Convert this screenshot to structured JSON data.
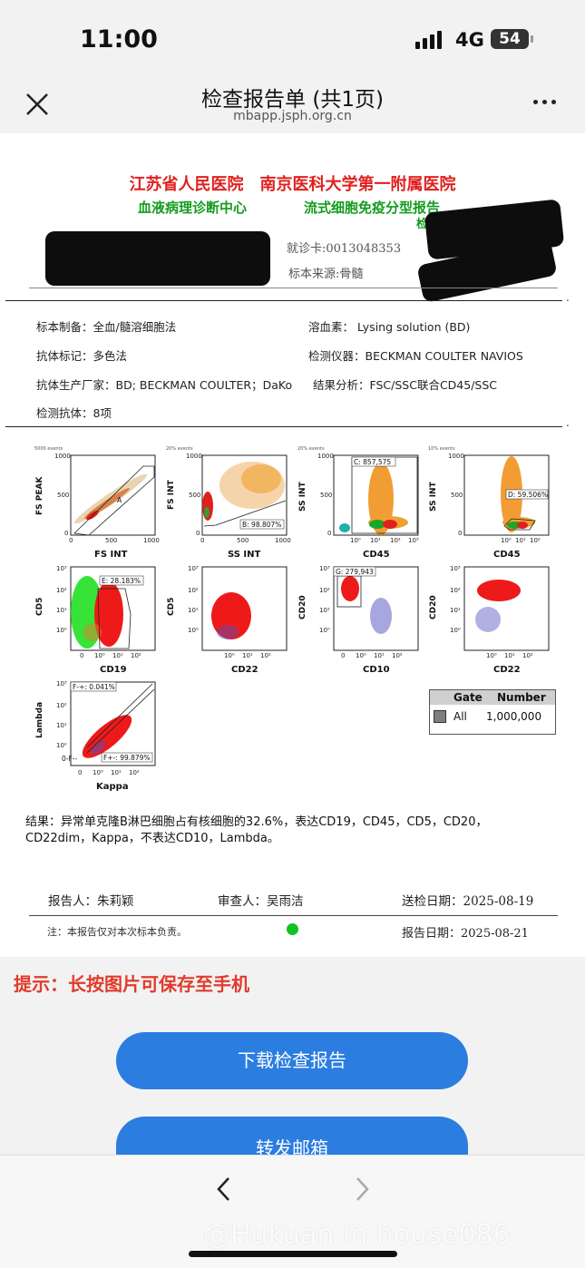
{
  "status": {
    "time": "11:00",
    "network": "4G",
    "battery": "54"
  },
  "nav": {
    "title": "检查报告单 (共1页)",
    "url": "mbapp.jsph.org.cn",
    "close_icon": "close-icon",
    "more_icon": "more-icon"
  },
  "report": {
    "hospital": "江苏省人民医院　南京医科大学第一附属医院",
    "department": "血液病理诊断中心",
    "title": "流式细胞免疫分型报告",
    "report_no_label": "检",
    "card_no": "就诊卡:0013048353",
    "specimen_source": "标本来源:骨髓",
    "specimen_prep": "标本制备：全血/髓溶细胞法",
    "lysing": "溶血素： Lysing solution (BD)",
    "antibody_label": "抗体标记：多色法",
    "instrument": "检测仪器：BECKMAN COULTER NAVIOS",
    "manufacturer": "抗体生产厂家：BD; BECKMAN COULTER；DaKo",
    "analysis": "结果分析：FSC/SSC联合CD45/SSC",
    "antibody_count": "检测抗体：8项",
    "result": "结果：异常单克隆B淋巴细胞占有核细胞的32.6%，表达CD19，CD45，CD5，CD20，CD22dim，Kappa，不表达CD10，Lambda。",
    "reporter": "报告人：朱莉颖",
    "reviewer": "审查人：吴雨洁",
    "submit_date": "送检日期：2025-08-19",
    "note": "注：本报告仅对本次标本负责。",
    "report_date": "报告日期：2025-08-21"
  },
  "legend": {
    "gate_header": "Gate",
    "number_header": "Number",
    "gate": "All",
    "number": "1,000,000"
  },
  "plots": [
    {
      "events": "5000 events",
      "x": "FS INT",
      "y": "FS PEAK",
      "xticks": [
        "0",
        "500",
        "1000"
      ],
      "yticks": [
        "0",
        "500",
        "1000"
      ],
      "gate": "A",
      "gate_value": ""
    },
    {
      "events": "20% events",
      "x": "SS INT",
      "y": "FS INT",
      "xticks": [
        "0",
        "500",
        "1000"
      ],
      "yticks": [
        "0",
        "500",
        "1000"
      ],
      "gate": "B",
      "gate_value": "98.807%"
    },
    {
      "events": "20% events",
      "x": "CD45",
      "y": "SS INT",
      "xticks": [
        "10⁰",
        "10¹",
        "10²",
        "10³"
      ],
      "yticks": [
        "0",
        "500",
        "1000"
      ],
      "gate": "C",
      "gate_value": "857,575"
    },
    {
      "events": "10% events",
      "x": "CD45",
      "y": "SS INT",
      "xticks": [
        "10⁰",
        "10¹",
        "10²"
      ],
      "yticks": [
        "0",
        "500",
        "1000"
      ],
      "gate": "D",
      "gate_value": "59.506%"
    },
    {
      "events": "",
      "x": "CD19",
      "y": "CD5",
      "xticks": [
        "0",
        "10⁰",
        "10¹",
        "10²"
      ],
      "yticks": [
        "10⁰",
        "10¹",
        "10²",
        "10³"
      ],
      "gate": "E",
      "gate_value": "28.183%"
    },
    {
      "events": "",
      "x": "CD22",
      "y": "CD5",
      "xticks": [
        "10⁰",
        "10¹",
        "10²"
      ],
      "yticks": [
        "10⁰",
        "10¹",
        "10²",
        "10³"
      ],
      "gate": "",
      "gate_value": ""
    },
    {
      "events": "",
      "x": "CD10",
      "y": "CD20",
      "xticks": [
        "0",
        "10⁰",
        "10¹",
        "10²"
      ],
      "yticks": [
        "10⁰",
        "10¹",
        "10²",
        "10³"
      ],
      "gate": "G",
      "gate_value": "279,943"
    },
    {
      "events": "",
      "x": "CD22",
      "y": "CD20",
      "xticks": [
        "10⁰",
        "10¹",
        "10²"
      ],
      "yticks": [
        "10⁰",
        "10¹",
        "10²",
        "10³"
      ],
      "gate": "",
      "gate_value": ""
    },
    {
      "events": "",
      "x": "Kappa",
      "y": "Lambda",
      "xticks": [
        "0",
        "10⁰",
        "10¹",
        "10²"
      ],
      "yticks": [
        "10⁰",
        "10¹",
        "10²",
        "10³"
      ],
      "gate": "F-+",
      "gate_value": "0.041%",
      "gate2": "F--",
      "gate3": "F+-",
      "gate3_value": "99.879%"
    }
  ],
  "plot_labels": {
    "p1_gate": "A",
    "p2_gate": "B: 98.807%",
    "p3_gate": "C: 857,575",
    "p4_gate": "D: 59.506%",
    "p5_gate": "E: 28.183%",
    "p7_gate": "G: 279,943",
    "p9_gate_a": "F-+: 0.041%",
    "p9_gate_b": "F+-: 99.879%",
    "p9_gate_c": "0-F--"
  },
  "colors": {
    "red": "#e0201e",
    "green": "#149c1f",
    "orange": "#f0a030",
    "blue": "#2b7de0"
  },
  "tip": "提示：长按图片可保存至手机",
  "buttons": {
    "download": "下载检查报告",
    "forward": "转发邮箱"
  },
  "bottom": {
    "back_icon": "chevron-left-icon",
    "forward_icon": "chevron-right-icon",
    "watermark": "@Hukuan in house086"
  }
}
